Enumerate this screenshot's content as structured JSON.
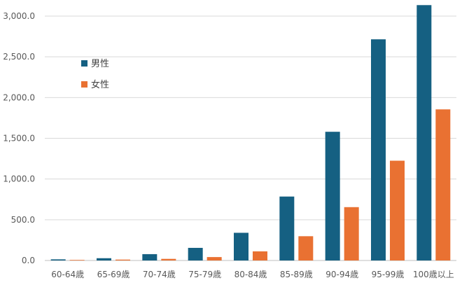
{
  "chart_data": {
    "type": "bar",
    "categories": [
      "60-64歳",
      "65-69歳",
      "70-74歳",
      "75-79歳",
      "80-84歳",
      "85-89歳",
      "90-94歳",
      "95-99歳",
      "100歳以上"
    ],
    "series": [
      {
        "name": "男性",
        "color": "#156082",
        "values": [
          14,
          28,
          78,
          155,
          340,
          785,
          1580,
          2715,
          3135
        ]
      },
      {
        "name": "女性",
        "color": "#E97132",
        "values": [
          7,
          11,
          20,
          42,
          112,
          298,
          655,
          1225,
          1855
        ]
      }
    ],
    "title": "",
    "xlabel": "",
    "ylabel": "",
    "ylim": [
      0,
      3000
    ],
    "yticks": [
      0,
      500,
      1000,
      1500,
      2000,
      2500,
      3000
    ],
    "ytick_labels": [
      "0.0",
      "500.0",
      "1,000.0",
      "1,500.0",
      "2,000.0",
      "2,500.0",
      "3,000.0"
    ],
    "grid": true,
    "legend_position": "left-inside-top"
  }
}
